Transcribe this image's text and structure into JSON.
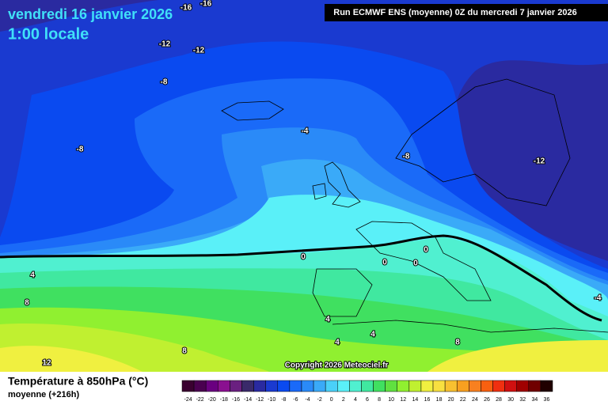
{
  "header": {
    "date": "vendredi 16 janvier 2026",
    "time": "1:00 locale",
    "run": "Run ECMWF ENS (moyenne) 0Z du mercredi 7 janvier 2026"
  },
  "map": {
    "contour_labels": [
      -16,
      -16,
      -12,
      -12,
      -8,
      -8,
      -4,
      -8,
      -12,
      0,
      0,
      0,
      0,
      4,
      8,
      4,
      4,
      4,
      8,
      8,
      12,
      -4
    ]
  },
  "copyright": "Copyright 2026 Meteociel.fr",
  "legend": {
    "title": "Température à 850hPa (°C)",
    "subtitle": "moyenne  (+216h)",
    "ticks": [
      -24,
      -22,
      -20,
      -18,
      -16,
      -14,
      -12,
      -10,
      -8,
      -6,
      -4,
      -2,
      0,
      2,
      4,
      6,
      8,
      10,
      12,
      14,
      16,
      18,
      20,
      22,
      24,
      26,
      28,
      30,
      32,
      34,
      36
    ],
    "colors": [
      "#3a0030",
      "#4a0050",
      "#6a0080",
      "#8a1090",
      "#6a2080",
      "#3a2a6a",
      "#2a2aa0",
      "#1a3ad0",
      "#0a4af0",
      "#1a6af8",
      "#2a8af8",
      "#3aaaf8",
      "#4ad0f8",
      "#5af0f8",
      "#50f0d0",
      "#40e8a0",
      "#40e060",
      "#60e040",
      "#90f030",
      "#c0f030",
      "#f0f040",
      "#f8e040",
      "#f8c030",
      "#f8a020",
      "#f88020",
      "#f86010",
      "#f03010",
      "#d01010",
      "#a00000",
      "#700000",
      "#200000"
    ]
  }
}
